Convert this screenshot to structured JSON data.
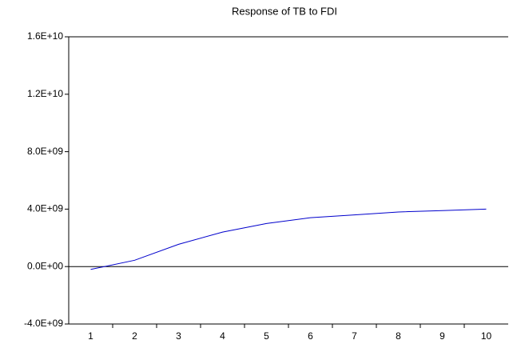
{
  "chart_data": {
    "type": "line",
    "title": "Response of TB to FDI",
    "categories": [
      "1",
      "2",
      "3",
      "4",
      "5",
      "6",
      "7",
      "8",
      "9",
      "10"
    ],
    "series": [
      {
        "name": "Response",
        "color": "#0000cc",
        "values": [
          -200000000,
          440000000,
          1550000000,
          2400000000,
          3000000000,
          3400000000,
          3600000000,
          3800000000,
          3900000000,
          4000000000
        ]
      }
    ],
    "ylim": [
      -4000000000,
      16000000000
    ],
    "yticks": [
      {
        "value": -4000000000,
        "label": "-4.0E+09"
      },
      {
        "value": 0,
        "label": "0.0E+00"
      },
      {
        "value": 4000000000,
        "label": "4.0E+09"
      },
      {
        "value": 8000000000,
        "label": "8.0E+09"
      },
      {
        "value": 12000000000,
        "label": "1.2E+10"
      },
      {
        "value": 16000000000,
        "label": "1.6E+10"
      }
    ],
    "zero_line": true
  }
}
